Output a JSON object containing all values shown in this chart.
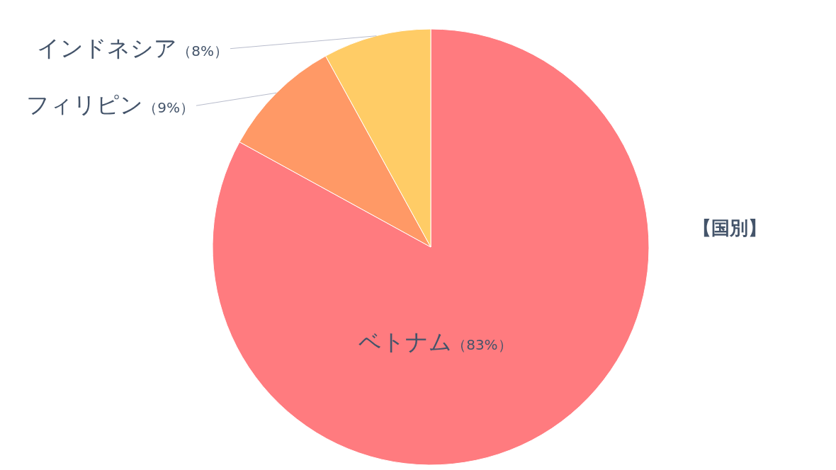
{
  "chart_data": {
    "type": "pie",
    "title": "【国別】",
    "categories": [
      "ベトナム",
      "フィリピン",
      "インドネシア"
    ],
    "values": [
      83,
      9,
      8
    ],
    "colors": [
      "#ff7b7f",
      "#ff9966",
      "#ffcc66"
    ],
    "value_labels": [
      "（83%）",
      "（9%）",
      "（8%）"
    ]
  }
}
